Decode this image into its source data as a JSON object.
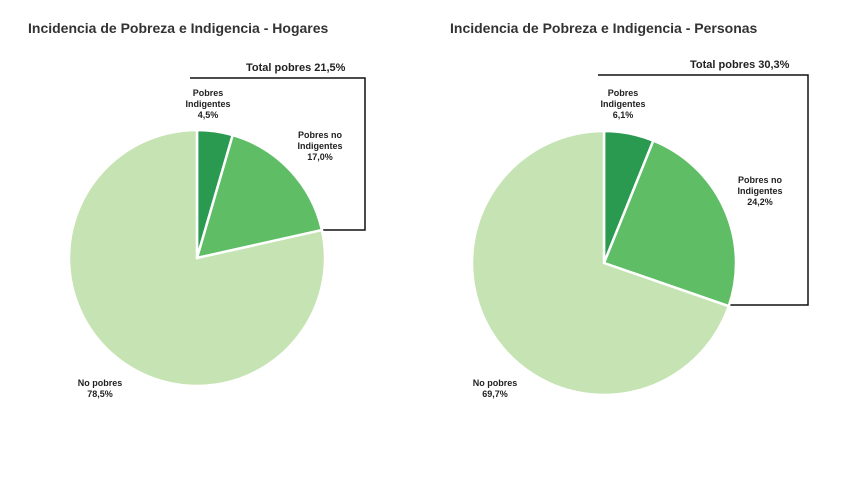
{
  "chart_data": [
    {
      "type": "pie",
      "title": "Incidencia de Pobreza e Indigencia - Hogares",
      "categories": [
        "Pobres Indigentes",
        "Pobres no Indigentes",
        "No pobres"
      ],
      "values": [
        4.5,
        17.0,
        78.5
      ],
      "value_labels": [
        "4,5%",
        "17,0%",
        "78,5%"
      ],
      "colors": [
        "#2a9a50",
        "#5fbd66",
        "#c6e4b3"
      ],
      "annotation": "Total pobres 21,5%"
    },
    {
      "type": "pie",
      "title": "Incidencia de Pobreza e Indigencia - Personas",
      "categories": [
        "Pobres Indigentes",
        "Pobres no Indigentes",
        "No pobres"
      ],
      "values": [
        6.1,
        24.2,
        69.7
      ],
      "value_labels": [
        "6,1%",
        "24,2%",
        "69,7%"
      ],
      "colors": [
        "#2a9a50",
        "#5fbd66",
        "#c6e4b3"
      ],
      "annotation": "Total pobres 30,3%"
    }
  ]
}
